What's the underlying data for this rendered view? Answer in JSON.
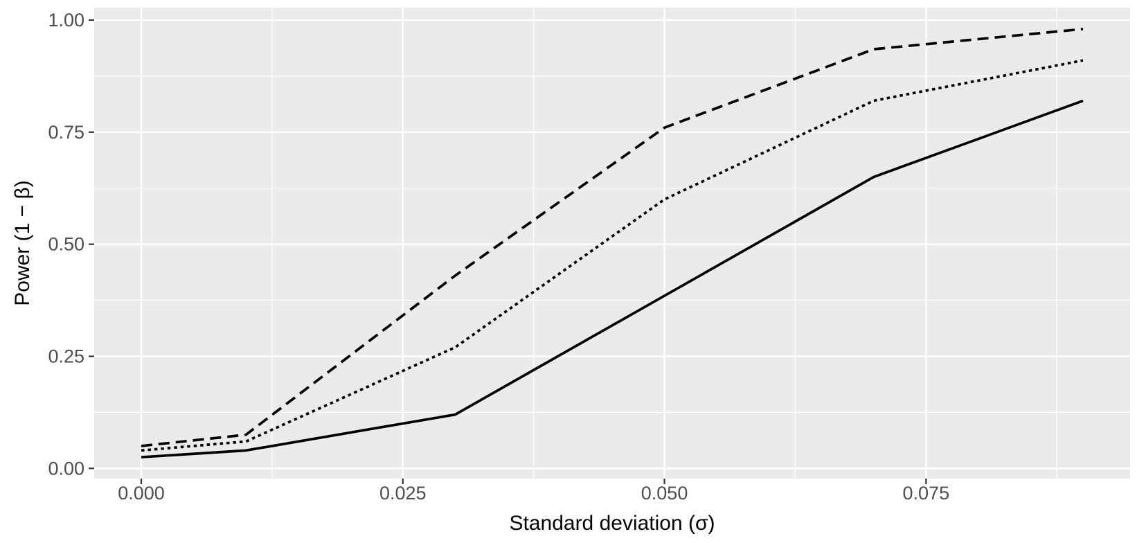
{
  "chart_data": {
    "type": "line",
    "title": "",
    "xlabel": "Standard deviation (σ)",
    "ylabel": "Power (1 − β)",
    "x": [
      0,
      0.01,
      0.03,
      0.05,
      0.07,
      0.09
    ],
    "series": [
      {
        "name": "solid-line",
        "linetype": "solid",
        "color": "#000000",
        "values": [
          0.025,
          0.04,
          0.12,
          0.385,
          0.65,
          0.82
        ]
      },
      {
        "name": "dotted-line",
        "linetype": "dotted",
        "color": "#000000",
        "values": [
          0.04,
          0.06,
          0.27,
          0.6,
          0.82,
          0.91
        ]
      },
      {
        "name": "dashed-line",
        "linetype": "dashed",
        "color": "#000000",
        "values": [
          0.05,
          0.075,
          0.43,
          0.76,
          0.935,
          0.98
        ]
      }
    ],
    "x_ticks": [
      0,
      0.025,
      0.05,
      0.075
    ],
    "x_tick_labels": [
      "0.000",
      "0.025",
      "0.050",
      "0.075"
    ],
    "y_ticks": [
      0,
      0.25,
      0.5,
      0.75,
      1.0
    ],
    "y_tick_labels": [
      "0.00",
      "0.25",
      "0.50",
      "0.75",
      "1.00"
    ],
    "xlim": [
      0,
      0.09
    ],
    "ylim": [
      0.025,
      0.98
    ],
    "expansion": 0.05,
    "grid": "major+minor",
    "legend": "none",
    "theme": {
      "panel_bg": "#EBEBEB",
      "grid_color": "#FFFFFF",
      "tick_label_color": "#4D4D4D",
      "axis_title_color": "#000000",
      "tick_mark_color": "#333333",
      "line_color": "#000000"
    }
  }
}
